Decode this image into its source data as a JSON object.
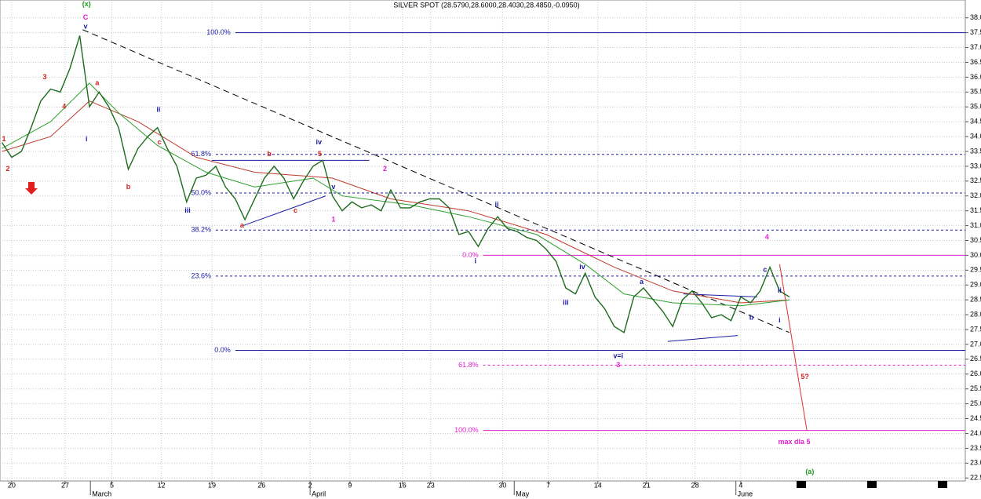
{
  "chart_data": {
    "type": "line",
    "title": "SILVER SPOT (28.5790,28.6000,28.4030,28.4850,-0.0950)",
    "xlim": [
      -1.2,
      98.1
    ],
    "ylim": [
      22.4,
      38.6
    ],
    "yticks": [
      {
        "value": 22.5,
        "label": "22.5"
      },
      {
        "value": 23,
        "label": "23.0"
      },
      {
        "value": 23.5,
        "label": "23.5"
      },
      {
        "value": 24,
        "label": "24.0"
      },
      {
        "value": 24.5,
        "label": "24.5"
      },
      {
        "value": 25,
        "label": "25.0"
      },
      {
        "value": 25.5,
        "label": "25.5"
      },
      {
        "value": 26,
        "label": "26.0"
      },
      {
        "value": 26.5,
        "label": "26.5"
      },
      {
        "value": 27,
        "label": "27.0"
      },
      {
        "value": 27.5,
        "label": "27.5"
      },
      {
        "value": 28,
        "label": "28.0"
      },
      {
        "value": 28.5,
        "label": "28.5"
      },
      {
        "value": 29,
        "label": "29.0"
      },
      {
        "value": 29.5,
        "label": "29.5"
      },
      {
        "value": 30,
        "label": "30.0"
      },
      {
        "value": 30.5,
        "label": "30.5"
      },
      {
        "value": 31,
        "label": "31.0"
      },
      {
        "value": 31.5,
        "label": "31.5"
      },
      {
        "value": 32,
        "label": "32.0"
      },
      {
        "value": 32.5,
        "label": "32.5"
      },
      {
        "value": 33,
        "label": "33.0"
      },
      {
        "value": 33.5,
        "label": "33.5"
      },
      {
        "value": 34,
        "label": "34.0"
      },
      {
        "value": 34.5,
        "label": "34.5"
      },
      {
        "value": 35,
        "label": "35.0"
      },
      {
        "value": 35.5,
        "label": "35.5"
      },
      {
        "value": 36,
        "label": "36.0"
      },
      {
        "value": 36.5,
        "label": "36.5"
      },
      {
        "value": 37,
        "label": "37.0"
      },
      {
        "value": 37.5,
        "label": "37.5"
      },
      {
        "value": 38,
        "label": "38.0"
      }
    ],
    "xticks": [
      {
        "value": 0,
        "label": "20"
      },
      {
        "value": 5.5,
        "label": "27"
      },
      {
        "value": 10.3,
        "label": "5"
      },
      {
        "value": 15.4,
        "label": "12"
      },
      {
        "value": 20.6,
        "label": "19"
      },
      {
        "value": 25.7,
        "label": "26"
      },
      {
        "value": 30.7,
        "label": "2"
      },
      {
        "value": 34.8,
        "label": "9"
      },
      {
        "value": 40.2,
        "label": "16"
      },
      {
        "value": 43.1,
        "label": "23"
      },
      {
        "value": 50.5,
        "label": "30"
      },
      {
        "value": 55.2,
        "label": "7"
      },
      {
        "value": 60.3,
        "label": "14"
      },
      {
        "value": 65.3,
        "label": "21"
      },
      {
        "value": 70.3,
        "label": "28"
      },
      {
        "value": 75,
        "label": "4"
      }
    ],
    "months": [
      {
        "value": 8.1,
        "label": "March"
      },
      {
        "value": 30.7,
        "label": "April"
      },
      {
        "value": 51.7,
        "label": "May"
      },
      {
        "value": 74.5,
        "label": "June"
      }
    ],
    "grid": true,
    "x": [
      -1,
      0,
      1,
      2,
      3,
      4,
      5,
      6,
      7,
      8,
      9,
      10,
      11,
      12,
      13,
      14,
      15,
      16,
      17,
      18,
      19,
      20,
      21,
      22,
      23,
      24,
      25,
      26,
      27,
      28,
      29,
      30,
      31,
      32,
      33,
      34,
      35,
      36,
      37,
      38,
      39,
      40,
      41,
      42,
      43,
      44,
      45,
      46,
      47,
      48,
      49,
      50,
      51,
      52,
      53,
      54,
      55,
      56,
      57,
      58,
      59,
      60,
      61,
      62,
      63,
      64,
      65,
      66,
      67,
      68,
      69,
      70,
      71,
      72,
      73,
      74,
      75,
      76,
      77,
      78,
      79,
      80
    ],
    "series": [
      {
        "color": "#1d6b1d",
        "values": [
          33.8,
          33.3,
          33.5,
          34.3,
          35.2,
          35.6,
          35.5,
          36.3,
          37.4,
          35.0,
          35.5,
          35.0,
          34.3,
          32.9,
          33.6,
          34.0,
          34.3,
          33.6,
          33.0,
          31.8,
          32.6,
          32.7,
          33.0,
          32.3,
          31.9,
          31.2,
          31.9,
          32.6,
          33.0,
          32.6,
          31.9,
          32.5,
          33.0,
          33.2,
          32.0,
          31.5,
          31.8,
          31.6,
          31.7,
          31.5,
          32.2,
          31.6,
          31.6,
          31.8,
          31.9,
          31.9,
          31.6,
          30.7,
          30.8,
          30.3,
          30.9,
          31.3,
          30.9,
          30.8,
          30.6,
          30.5,
          30.2,
          29.8,
          28.9,
          28.7,
          29.4,
          28.6,
          28.2,
          27.6,
          27.4,
          28.6,
          28.9,
          28.5,
          28.1,
          27.6,
          28.5,
          28.8,
          28.4,
          27.9,
          28.0,
          27.8,
          28.6,
          28.4,
          28.8,
          29.6,
          28.8,
          28.6
        ]
      },
      {
        "color": "#2ea02e",
        "x": [
          -1,
          4,
          8,
          11,
          15,
          20,
          25,
          31,
          34,
          41,
          47,
          54,
          59,
          63,
          68,
          75,
          80
        ],
        "values": [
          33.6,
          34.5,
          35.8,
          34.8,
          33.7,
          32.8,
          32.3,
          32.6,
          32.0,
          31.7,
          31.3,
          30.7,
          29.7,
          28.7,
          28.4,
          28.3,
          28.5
        ]
      },
      {
        "color": "#c0392b",
        "x": [
          -1,
          4,
          8,
          13,
          19,
          25,
          33,
          39,
          47,
          55,
          62,
          68,
          75,
          80
        ],
        "values": [
          33.5,
          34.0,
          35.2,
          34.5,
          33.3,
          32.8,
          32.6,
          31.9,
          31.5,
          30.7,
          29.6,
          28.8,
          28.4,
          28.5
        ]
      }
    ],
    "levels": [
      {
        "label": "100.0%",
        "value": 37.5,
        "from": 23,
        "color": "#1a1aa6",
        "dash": false
      },
      {
        "label": "61.8%",
        "value": 33.4,
        "from": 21,
        "color": "#1a1aa6",
        "dash": true
      },
      {
        "label": "50.0%",
        "value": 32.1,
        "from": 21,
        "color": "#1a1aa6",
        "dash": true
      },
      {
        "label": "38.2%",
        "value": 30.85,
        "from": 21,
        "color": "#1a1aa6",
        "dash": true
      },
      {
        "label": "23.6%",
        "value": 29.3,
        "from": 21,
        "color": "#1a1aa6",
        "dash": true
      },
      {
        "label": "0.0%",
        "value": 26.8,
        "from": 23,
        "color": "#1a1aa6",
        "dash": false
      },
      {
        "label": "0.0%",
        "value": 30.0,
        "from": 48.5,
        "color": "#e020d0",
        "dash": false
      },
      {
        "label": "61.8%",
        "value": 26.3,
        "from": 48.5,
        "color": "#e020d0",
        "dash": true
      },
      {
        "label": "100.0%",
        "value": 24.1,
        "from": 48.5,
        "color": "#e020d0",
        "dash": false
      }
    ],
    "lines": [
      {
        "x": [
          7.3,
          80
        ],
        "y": [
          37.6,
          27.4
        ],
        "color": "#000000",
        "dash": true
      },
      {
        "x": [
          20.6,
          36.8
        ],
        "y": [
          33.2,
          33.2
        ],
        "color": "#1a1aa6",
        "dash": false
      },
      {
        "x": [
          23.8,
          32.3
        ],
        "y": [
          31.0,
          32.0
        ],
        "color": "#1a1aa6",
        "dash": false
      },
      {
        "x": [
          69.1,
          76.7
        ],
        "y": [
          28.7,
          28.6
        ],
        "color": "#1a1aa6",
        "dash": false
      },
      {
        "x": [
          67.5,
          74.7
        ],
        "y": [
          27.1,
          27.3
        ],
        "color": "#1a1aa6",
        "dash": false
      },
      {
        "x": [
          79,
          81.8
        ],
        "y": [
          29.7,
          24.1
        ],
        "color": "#e03030",
        "dash": false
      }
    ],
    "annotations": [
      {
        "text": "(x)",
        "x": 7.7,
        "y": 38.45,
        "color": "#1a9a1a"
      },
      {
        "text": "C",
        "x": 7.6,
        "y": 38.0,
        "color": "#e020d0"
      },
      {
        "text": "v",
        "x": 7.6,
        "y": 37.7,
        "color": "#1a1aa6"
      },
      {
        "text": "1",
        "x": -0.8,
        "y": 33.9,
        "color": "#d02020"
      },
      {
        "text": "2",
        "x": -0.4,
        "y": 32.9,
        "color": "#d02020"
      },
      {
        "text": "3",
        "x": 3.4,
        "y": 36.0,
        "color": "#d02020"
      },
      {
        "text": "4",
        "x": 5.4,
        "y": 35.0,
        "color": "#d02020"
      },
      {
        "text": "a",
        "x": 8.8,
        "y": 35.8,
        "color": "#d02020"
      },
      {
        "text": "i",
        "x": 7.7,
        "y": 33.9,
        "color": "#1a1aa6"
      },
      {
        "text": "b",
        "x": 12.0,
        "y": 32.3,
        "color": "#d02020"
      },
      {
        "text": "ii",
        "x": 15.1,
        "y": 34.9,
        "color": "#1a1aa6"
      },
      {
        "text": "c",
        "x": 15.2,
        "y": 33.8,
        "color": "#d02020"
      },
      {
        "text": "iii",
        "x": 18.1,
        "y": 31.5,
        "color": "#1a1aa6"
      },
      {
        "text": "a",
        "x": 23.7,
        "y": 31.0,
        "color": "#d02020"
      },
      {
        "text": "b",
        "x": 26.5,
        "y": 33.4,
        "color": "#d02020"
      },
      {
        "text": "c",
        "x": 29.2,
        "y": 31.5,
        "color": "#d02020"
      },
      {
        "text": "iv",
        "x": 31.6,
        "y": 33.8,
        "color": "#1a1aa6"
      },
      {
        "text": "5",
        "x": 31.7,
        "y": 33.4,
        "color": "#d02020"
      },
      {
        "text": "v",
        "x": 33.1,
        "y": 32.3,
        "color": "#1a1aa6"
      },
      {
        "text": "1",
        "x": 33.1,
        "y": 31.2,
        "color": "#e020d0"
      },
      {
        "text": "2",
        "x": 38.4,
        "y": 32.9,
        "color": "#e020d0"
      },
      {
        "text": "i",
        "x": 47.7,
        "y": 29.8,
        "color": "#1a1aa6"
      },
      {
        "text": "ii",
        "x": 49.9,
        "y": 31.7,
        "color": "#1a1aa6"
      },
      {
        "text": "iii",
        "x": 57.0,
        "y": 28.4,
        "color": "#1a1aa6"
      },
      {
        "text": "iv",
        "x": 58.7,
        "y": 29.6,
        "color": "#1a1aa6"
      },
      {
        "text": "a",
        "x": 64.8,
        "y": 29.1,
        "color": "#1a1aa6"
      },
      {
        "text": "b",
        "x": 76.1,
        "y": 27.9,
        "color": "#1a1aa6"
      },
      {
        "text": "c",
        "x": 77.5,
        "y": 29.5,
        "color": "#1a1aa6"
      },
      {
        "text": "4",
        "x": 77.7,
        "y": 30.6,
        "color": "#e020d0"
      },
      {
        "text": "ii",
        "x": 79.0,
        "y": 28.8,
        "color": "#1a1aa6"
      },
      {
        "text": "i",
        "x": 79.0,
        "y": 27.8,
        "color": "#1a1aa6"
      },
      {
        "text": "v=i",
        "x": 62.4,
        "y": 26.6,
        "color": "#1a1aa6"
      },
      {
        "text": "3",
        "x": 62.4,
        "y": 26.3,
        "color": "#e020d0"
      },
      {
        "text": "5?",
        "x": 81.6,
        "y": 25.9,
        "color": "#d02020"
      },
      {
        "text": "max dla 5",
        "x": 80.5,
        "y": 23.7,
        "color": "#e020d0"
      },
      {
        "text": "(a)",
        "x": 82.1,
        "y": 22.7,
        "color": "#1a9a1a"
      }
    ]
  }
}
